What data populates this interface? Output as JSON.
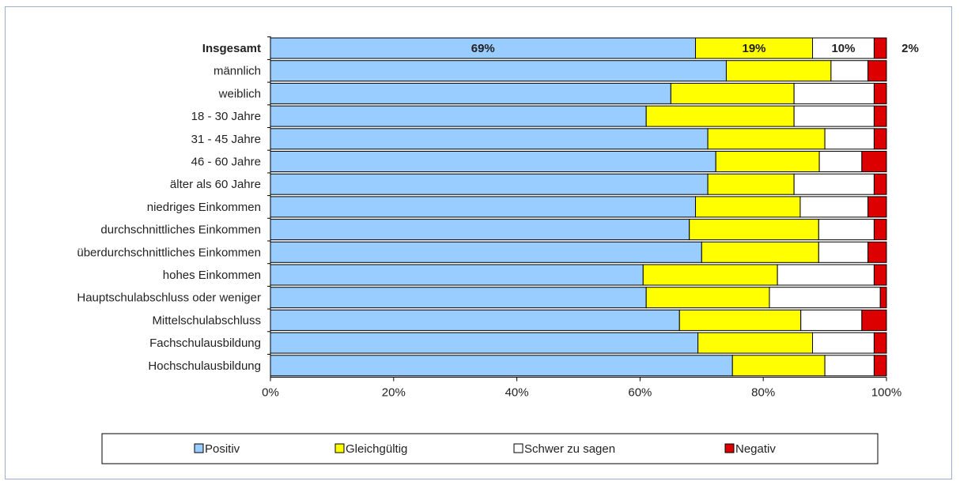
{
  "chart_data": {
    "type": "bar",
    "orientation": "horizontal",
    "stacked": "percent",
    "categories": [
      "Insgesamt",
      "männlich",
      "weiblich",
      "18 - 30 Jahre",
      "31 - 45 Jahre",
      "46 - 60 Jahre",
      "älter als 60 Jahre",
      "niedriges Einkommen",
      "durchschnittliches Einkommen",
      "überdurchschnittliches Einkommen",
      "hohes Einkommen",
      "Hauptschulabschluss oder weniger",
      "Mittelschulabschluss",
      "Fachschulausbildung",
      "Hochschulausbildung"
    ],
    "series": [
      {
        "name": "Positiv",
        "color": "#99ccff",
        "values": [
          69,
          74,
          65,
          61,
          71,
          72.3,
          71,
          69,
          68,
          70,
          60.5,
          61,
          66.4,
          69.4,
          75
        ]
      },
      {
        "name": "Gleichgültig",
        "color": "#ffff00",
        "values": [
          19,
          17,
          20,
          24,
          19,
          16.8,
          14,
          17,
          21,
          19,
          21.8,
          20,
          19.7,
          18.6,
          15
        ]
      },
      {
        "name": "Schwer zu sagen",
        "color": "#ffffff",
        "values": [
          10,
          6,
          13,
          13,
          8,
          6.9,
          13,
          11,
          9,
          8,
          15.7,
          18,
          9.9,
          10,
          8
        ]
      },
      {
        "name": "Negativ",
        "color": "#dd0000",
        "values": [
          2,
          3,
          2,
          2,
          2,
          4,
          2,
          3,
          2,
          3,
          2,
          1,
          4,
          2,
          2
        ]
      }
    ],
    "data_labels": {
      "category": "Insgesamt",
      "labels": [
        "69%",
        "19%",
        "10%",
        "2%"
      ]
    },
    "x_ticks": [
      "0%",
      "20%",
      "40%",
      "60%",
      "80%",
      "100%"
    ],
    "xlim": [
      0,
      100
    ],
    "grid": false,
    "legend_position": "bottom"
  }
}
